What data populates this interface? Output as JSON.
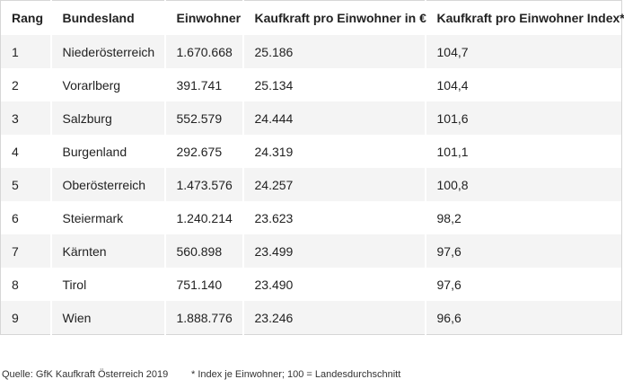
{
  "table": {
    "header": [
      "Rang",
      "Bundesland",
      "Einwohner",
      "Kaufkraft pro Einwohner in €",
      "Kaufkraft pro Einwohner Index*"
    ],
    "rows": [
      [
        "1",
        "Niederösterreich",
        "1.670.668",
        "25.186",
        "104,7"
      ],
      [
        "2",
        "Vorarlberg",
        "391.741",
        "25.134",
        "104,4"
      ],
      [
        "3",
        "Salzburg",
        "552.579",
        "24.444",
        "101,6"
      ],
      [
        "4",
        "Burgenland",
        "292.675",
        "24.319",
        "101,1"
      ],
      [
        "5",
        "Oberösterreich",
        "1.473.576",
        "24.257",
        "100,8"
      ],
      [
        "6",
        "Steiermark",
        "1.240.214",
        "23.623",
        "98,2"
      ],
      [
        "7",
        "Kärnten",
        "560.898",
        "23.499",
        "97,6"
      ],
      [
        "8",
        "Tirol",
        "751.140",
        "23.490",
        "97,6"
      ],
      [
        "9",
        "Wien",
        "1.888.776",
        "23.246",
        "96,6"
      ]
    ]
  },
  "footer": {
    "source": "Quelle: GfK Kaufkraft Österreich 2019",
    "note": "* Index je Einwohner; 100 = Landesdurchschnitt"
  }
}
